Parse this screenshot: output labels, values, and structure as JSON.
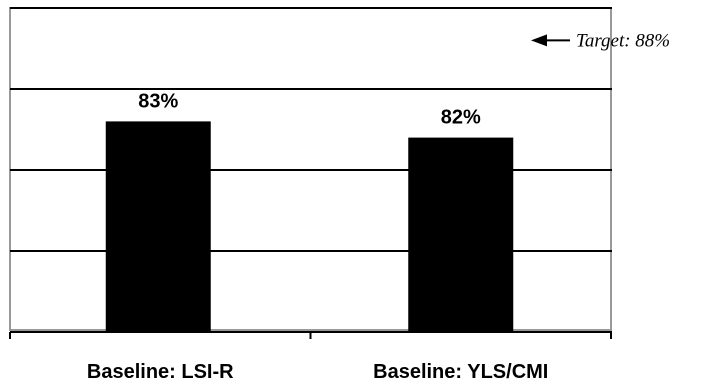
{
  "chart_data": {
    "type": "bar",
    "categories": [
      "Baseline: LSI-R",
      "Baseline: YLS/CMI"
    ],
    "values": [
      83,
      82
    ],
    "data_labels": [
      "83%",
      "82%"
    ],
    "ylim": [
      70,
      90
    ],
    "gridlines": [
      75,
      80,
      85,
      90
    ],
    "grid": true,
    "target": {
      "value": 88,
      "label": "Target: 88%"
    },
    "colors": {
      "bar": "#000000",
      "plot_border": "#999999",
      "gridline": "#000000"
    }
  }
}
